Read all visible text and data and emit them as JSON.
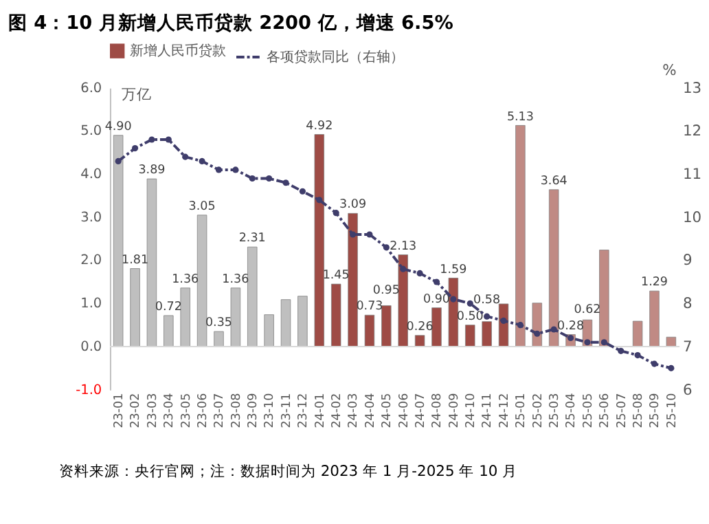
{
  "chart_data": {
    "type": "bar",
    "title": "图 4：10 月新增人民币贷款 2200 亿，增速 6.5%",
    "ylabel": "万亿",
    "y2label": "%",
    "categories": [
      "23-01",
      "23-02",
      "23-03",
      "23-04",
      "23-05",
      "23-06",
      "23-07",
      "23-08",
      "23-09",
      "23-10",
      "23-11",
      "23-12",
      "24-01",
      "24-02",
      "24-03",
      "24-04",
      "24-05",
      "24-06",
      "24-07",
      "24-08",
      "24-09",
      "24-10",
      "24-11",
      "24-12",
      "25-01",
      "25-02",
      "25-03",
      "25-04",
      "25-05",
      "25-06",
      "25-07",
      "25-08",
      "25-09",
      "25-10"
    ],
    "series": [
      {
        "name": "新增人民币贷款",
        "color": "#9e4b45",
        "colors": [
          "#bfbfbf",
          "#bfbfbf",
          "#bfbfbf",
          "#bfbfbf",
          "#bfbfbf",
          "#bfbfbf",
          "#bfbfbf",
          "#bfbfbf",
          "#bfbfbf",
          "#bfbfbf",
          "#bfbfbf",
          "#bfbfbf",
          "#9e4b45",
          "#9e4b45",
          "#9e4b45",
          "#9e4b45",
          "#9e4b45",
          "#9e4b45",
          "#9e4b45",
          "#9e4b45",
          "#9e4b45",
          "#9e4b45",
          "#9e4b45",
          "#9e4b45",
          "#c08a84",
          "#c08a84",
          "#c08a84",
          "#c08a84",
          "#c08a84",
          "#c08a84",
          "#c08a84",
          "#c08a84",
          "#c08a84",
          "#c08a84"
        ],
        "values": [
          4.9,
          1.81,
          3.89,
          0.72,
          1.36,
          3.05,
          0.35,
          1.36,
          2.31,
          0.74,
          1.09,
          1.17,
          4.92,
          1.45,
          3.09,
          0.73,
          0.95,
          2.13,
          0.26,
          0.9,
          1.59,
          0.5,
          0.58,
          0.99,
          5.13,
          1.01,
          3.64,
          0.28,
          0.62,
          2.24,
          null,
          0.59,
          1.29,
          0.22
        ],
        "value_labels": [
          "4.90",
          "1.81",
          "3.89",
          "0.72",
          "1.36",
          "3.05",
          "0.35",
          "1.36",
          "2.31",
          null,
          null,
          null,
          "4.92",
          "1.45",
          "3.09",
          "0.73",
          "0.95",
          "2.13",
          "0.26",
          "0.90",
          "1.59",
          "0.50",
          "0.58",
          null,
          "5.13",
          null,
          "3.64",
          "0.28",
          "0.62",
          null,
          null,
          null,
          "1.29",
          null
        ]
      },
      {
        "name": "各项贷款同比（右轴）",
        "type": "line",
        "axis": "y2",
        "color": "#3f3d6b",
        "marker": "circle",
        "line_style": "dashed",
        "values": [
          11.3,
          11.6,
          11.8,
          11.8,
          11.4,
          11.3,
          11.1,
          11.1,
          10.9,
          10.9,
          10.8,
          10.6,
          10.4,
          10.1,
          9.6,
          9.6,
          9.3,
          8.8,
          8.7,
          8.5,
          8.1,
          8.0,
          7.7,
          7.6,
          7.5,
          7.3,
          7.4,
          7.2,
          7.1,
          7.1,
          6.9,
          6.8,
          6.6,
          6.5
        ]
      }
    ],
    "ylim": [
      -1,
      6
    ],
    "yticks": [
      {
        "value": -1,
        "label": "-1.0"
      },
      {
        "value": 0,
        "label": "0.0"
      },
      {
        "value": 1,
        "label": "1.0"
      },
      {
        "value": 2,
        "label": "2.0"
      },
      {
        "value": 3,
        "label": "3.0"
      },
      {
        "value": 4,
        "label": "4.0"
      },
      {
        "value": 5,
        "label": "5.0"
      },
      {
        "value": 6,
        "label": "6.0"
      }
    ],
    "y2lim": [
      6,
      13
    ],
    "y2ticks": [
      6,
      7,
      8,
      9,
      10,
      11,
      12,
      13
    ],
    "ref_lines": [
      {
        "axis": "y",
        "value": 0,
        "color": "#d9d9d9"
      }
    ],
    "grid": false,
    "legend": "top",
    "annotations": [
      "资料来源：央行官网；注：数据时间为 2023 年 1 月-2025 年 10 月"
    ]
  }
}
